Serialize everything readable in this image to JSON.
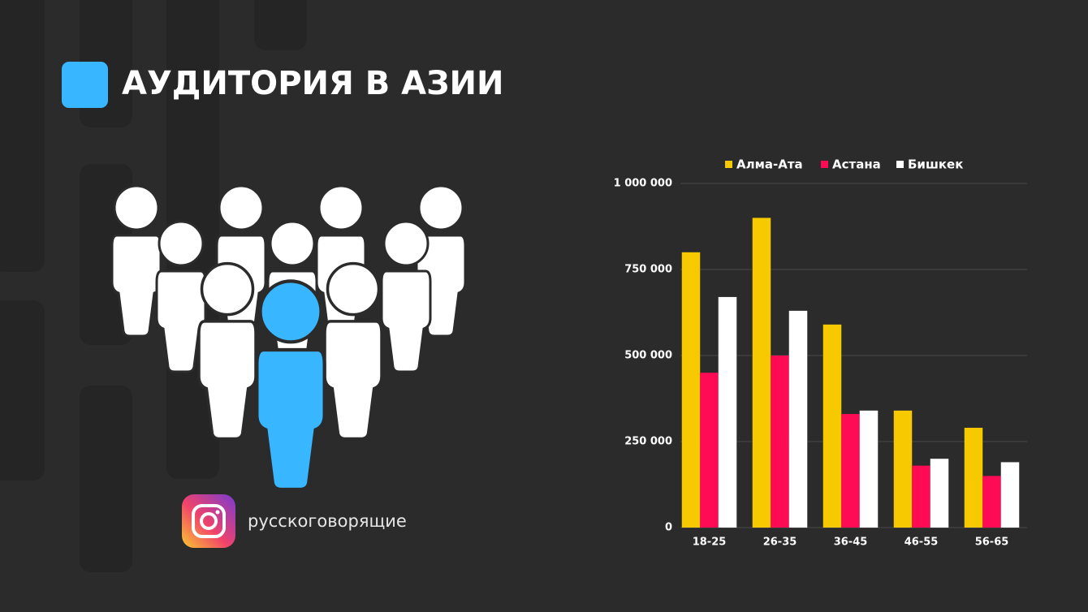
{
  "header": {
    "title": "АУДИТОРИЯ В АЗИИ"
  },
  "caption": "русскоговорящие",
  "chart_data": {
    "type": "bar",
    "categories": [
      "18-25",
      "26-35",
      "36-45",
      "46-55",
      "56-65"
    ],
    "series": [
      {
        "name": "Алма-Ата",
        "color": "#f7c900",
        "values": [
          800000,
          900000,
          590000,
          340000,
          290000
        ]
      },
      {
        "name": "Астана",
        "color": "#ff0a54",
        "values": [
          450000,
          500000,
          330000,
          180000,
          150000
        ]
      },
      {
        "name": "Бишкек",
        "color": "#ffffff",
        "values": [
          670000,
          630000,
          340000,
          200000,
          190000
        ]
      }
    ],
    "ylim": [
      0,
      1000000
    ],
    "yticks": [
      0,
      {
        "value": 250000,
        "label": "250 000"
      },
      {
        "value": 500000,
        "label": "500 000"
      },
      {
        "value": 750000,
        "label": "750 000"
      },
      {
        "value": 1000000,
        "label": "1 000 000"
      }
    ],
    "grid": true,
    "legend": "top"
  }
}
